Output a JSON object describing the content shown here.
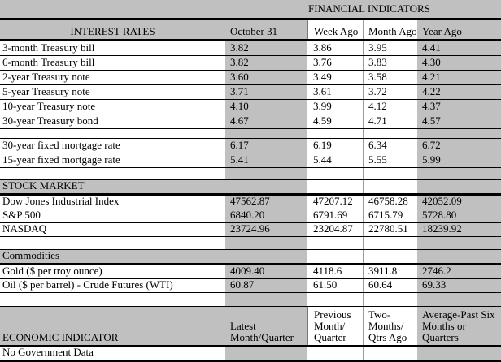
{
  "title": "FINANCIAL INDICATORS",
  "colors": {
    "sheet_background": "#c0c0c0",
    "cell_white": "#ffffff",
    "gridline": "#000000"
  },
  "rates_header": {
    "section": "INTEREST RATES",
    "cols": [
      "October 31",
      "Week Ago",
      "Month Ago",
      "Year Ago"
    ]
  },
  "treasury_rows": [
    {
      "label": "3-month Treasury bill",
      "v": [
        "3.82",
        "3.86",
        "3.95",
        "4.41"
      ]
    },
    {
      "label": "6-month Treasury bill",
      "v": [
        "3.82",
        "3.76",
        "3.83",
        "4.30"
      ]
    },
    {
      "label": "2-year Treasury note",
      "v": [
        "3.60",
        "3.49",
        "3.58",
        "4.21"
      ]
    },
    {
      "label": "5-year Treasury note",
      "v": [
        "3.71",
        "3.61",
        "3.72",
        "4.22"
      ]
    },
    {
      "label": "10-year Treasury note",
      "v": [
        "4.10",
        "3.99",
        "4.12",
        "4.37"
      ]
    },
    {
      "label": "30-year Treasury bond",
      "v": [
        "4.67",
        "4.59",
        "4.71",
        "4.57"
      ]
    }
  ],
  "mortgage_rows": [
    {
      "label": "30-year fixed mortgage rate",
      "v": [
        "6.17",
        "6.19",
        "6.34",
        "6.72"
      ]
    },
    {
      "label": "15-year fixed mortgage rate",
      "v": [
        "5.41",
        "5.44",
        "5.55",
        "5.99"
      ]
    }
  ],
  "stock": {
    "section": "STOCK MARKET",
    "rows": [
      {
        "label": "Dow Jones Industrial Index",
        "v": [
          "47562.87",
          "47207.12",
          "46758.28",
          "42052.09"
        ]
      },
      {
        "label": "S&P 500",
        "v": [
          "6840.20",
          "6791.69",
          "6715.79",
          "5728.80"
        ]
      },
      {
        "label": "NASDAQ",
        "v": [
          "23724.96",
          "23204.87",
          "22780.51",
          "18239.92"
        ]
      }
    ]
  },
  "commodities": {
    "section": "Commodities",
    "rows": [
      {
        "label": "Gold ($ per troy ounce)",
        "v": [
          "4009.40",
          "4118.6",
          "3911.8",
          "2746.2"
        ]
      },
      {
        "label": "Oil ($ per barrel) - Crude Futures (WTI)",
        "v": [
          "60.87",
          "61.50",
          "60.64",
          "69.33"
        ]
      }
    ]
  },
  "economic": {
    "section": "ECONOMIC INDICATOR",
    "cols": [
      "Latest\nMonth/Quarter",
      "Previous\nMonth/\nQuarter",
      "Two-\nMonths/\nQtrs Ago",
      "Average-Past Six\nMonths or\nQuarters"
    ],
    "note": "No Government Data"
  }
}
